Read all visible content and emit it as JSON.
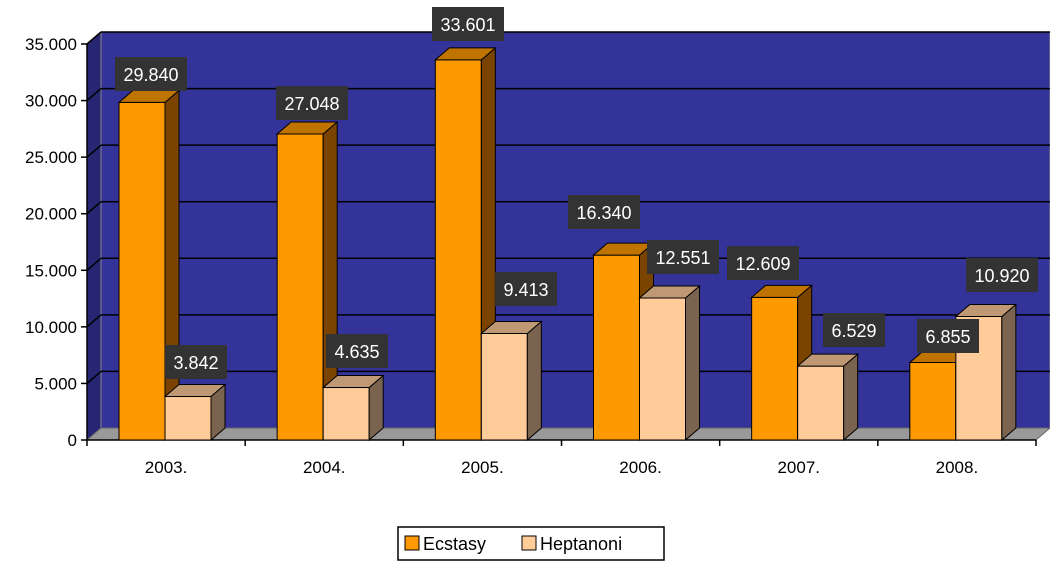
{
  "chart_data": {
    "type": "bar",
    "categories": [
      "2003.",
      "2004.",
      "2005.",
      "2006.",
      "2007.",
      "2008."
    ],
    "series": [
      {
        "name": "Ecstasy",
        "values": [
          29840,
          27048,
          33601,
          16340,
          12609,
          6855
        ],
        "labels": [
          "29.840",
          "27.048",
          "33.601",
          "16.340",
          "12.609",
          "6.855"
        ]
      },
      {
        "name": "Heptanoni",
        "values": [
          3842,
          4635,
          9413,
          12551,
          6529,
          10920
        ],
        "labels": [
          "3.842",
          "4.635",
          "9.413",
          "12.551",
          "6.529",
          "10.920"
        ]
      }
    ],
    "yticks": [
      "0",
      "5.000",
      "10.000",
      "15.000",
      "20.000",
      "25.000",
      "30.000",
      "35.000"
    ],
    "ylim": [
      0,
      35000
    ],
    "grid": true,
    "legend": "bottom",
    "three_d": true
  },
  "colors": {
    "plot_background": "#333399",
    "ecstasy": "#FF9900",
    "heptanoni": "#FFCC99",
    "label_background": "#333333",
    "floor": "#999999"
  }
}
